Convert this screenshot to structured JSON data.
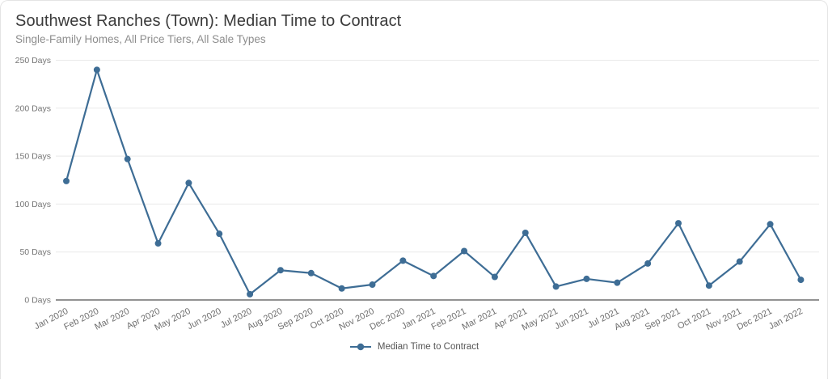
{
  "header": {
    "title": "Southwest Ranches (Town): Median Time to Contract",
    "subtitle": "Single-Family Homes, All Price Tiers, All Sale Types"
  },
  "legend": {
    "label": "Median Time to Contract"
  },
  "colors": {
    "line": "#3e6d95",
    "grid": "#e9e9e9",
    "axis": "#6e6e6e",
    "ytick_text": "#757575",
    "xtick_text": "#6e6e6e"
  },
  "chart_data": {
    "type": "line",
    "title": "Southwest Ranches (Town): Median Time to Contract",
    "subtitle": "Single-Family Homes, All Price Tiers, All Sale Types",
    "x": [
      "Jan 2020",
      "Feb 2020",
      "Mar 2020",
      "Apr 2020",
      "May 2020",
      "Jun 2020",
      "Jul 2020",
      "Aug 2020",
      "Sep 2020",
      "Oct 2020",
      "Nov 2020",
      "Dec 2020",
      "Jan 2021",
      "Feb 2021",
      "Mar 2021",
      "Apr 2021",
      "May 2021",
      "Jun 2021",
      "Jul 2021",
      "Aug 2021",
      "Sep 2021",
      "Oct 2021",
      "Nov 2021",
      "Dec 2021",
      "Jan 2022"
    ],
    "series": [
      {
        "name": "Median Time to Contract",
        "values": [
          124,
          240,
          147,
          59,
          122,
          69,
          6,
          31,
          28,
          12,
          16,
          41,
          25,
          51,
          24,
          70,
          14,
          22,
          18,
          38,
          80,
          15,
          40,
          79,
          21
        ]
      }
    ],
    "unit": "Days",
    "yticks": [
      0,
      50,
      100,
      150,
      200,
      250
    ],
    "ytick_suffix": " Days",
    "ylim": [
      0,
      250
    ],
    "grid": true,
    "legend_position": "bottom",
    "marker": "circle"
  }
}
